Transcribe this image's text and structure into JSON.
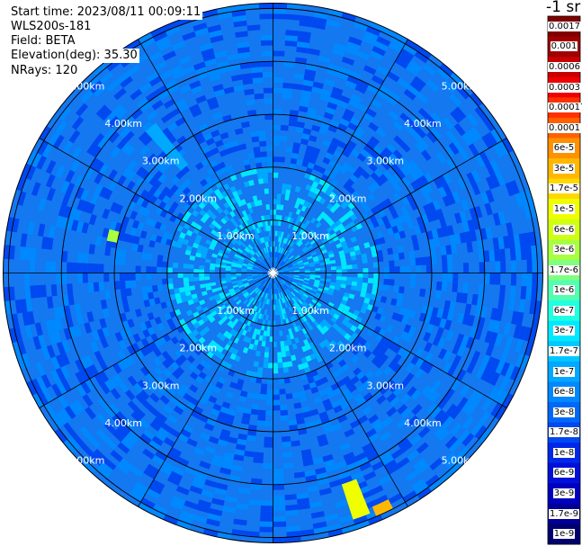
{
  "header": {
    "start_time": "Start time: 2023/08/11 00:09:11",
    "instrument": "WLS200s-181",
    "field": "Field: BETA",
    "elevation": "Elevation(deg): 35.30",
    "nrays": "NRays: 120"
  },
  "colors": {
    "background": "#1478f0",
    "grid": "#000000",
    "range_label": "#ffffff"
  },
  "chart_data": {
    "type": "heatmap",
    "projection": "polar",
    "title": "",
    "range_ring_labels": [
      "1.00km",
      "2.00km",
      "3.00km",
      "4.00km",
      "5.00km"
    ],
    "range_rings_km": [
      1,
      2,
      3,
      4,
      5
    ],
    "max_range_km": 5.1,
    "azimuth_spokes_deg": [
      0,
      30,
      60,
      90,
      120,
      150,
      180,
      210,
      240,
      270,
      300,
      330
    ],
    "nrays": 120,
    "colorbar": {
      "unit": "-1 sr",
      "labels": [
        "0.0017",
        "0.001",
        "0.0006",
        "0.0003",
        "0.00017",
        "0.0001",
        "6e-5",
        "3e-5",
        "1.7e-5",
        "1e-5",
        "6e-6",
        "3e-6",
        "1.7e-6",
        "1e-6",
        "6e-7",
        "3e-7",
        "1.7e-7",
        "1e-7",
        "6e-8",
        "3e-8",
        "1.7e-8",
        "1e-8",
        "6e-9",
        "3e-9",
        "1.7e-9",
        "1e-9"
      ],
      "colors": [
        "#800000",
        "#a00000",
        "#c80000",
        "#f00000",
        "#ff3000",
        "#ff6000",
        "#ff9000",
        "#ffb800",
        "#ffd800",
        "#f0ff00",
        "#d0ff10",
        "#a8ff40",
        "#80ff80",
        "#50ffb0",
        "#20ffe0",
        "#00e8ff",
        "#00c8ff",
        "#00a8ff",
        "#0088ff",
        "#0068f8",
        "#0048f0",
        "#0028e8",
        "#0010d8",
        "#0000c0",
        "#000098",
        "#000070"
      ]
    },
    "bands": [
      {
        "from_km": 0.0,
        "to_km": 0.4,
        "value": "6e-8"
      },
      {
        "from_km": 0.4,
        "to_km": 2.0,
        "value": "1.7e-7"
      },
      {
        "from_km": 2.0,
        "to_km": 5.1,
        "value": "3e-8"
      }
    ],
    "features": [
      {
        "azimuth_deg": 160,
        "from_km": 4.2,
        "to_km": 4.9,
        "value": "1e-5"
      },
      {
        "azimuth_deg": 155,
        "from_km": 4.8,
        "to_km": 5.0,
        "value": "3e-5"
      },
      {
        "azimuth_deg": 320,
        "from_km": 2.6,
        "to_km": 3.6,
        "value": "1e-7"
      },
      {
        "azimuth_deg": 283,
        "from_km": 3.0,
        "to_km": 3.2,
        "value": "3e-6"
      }
    ]
  }
}
